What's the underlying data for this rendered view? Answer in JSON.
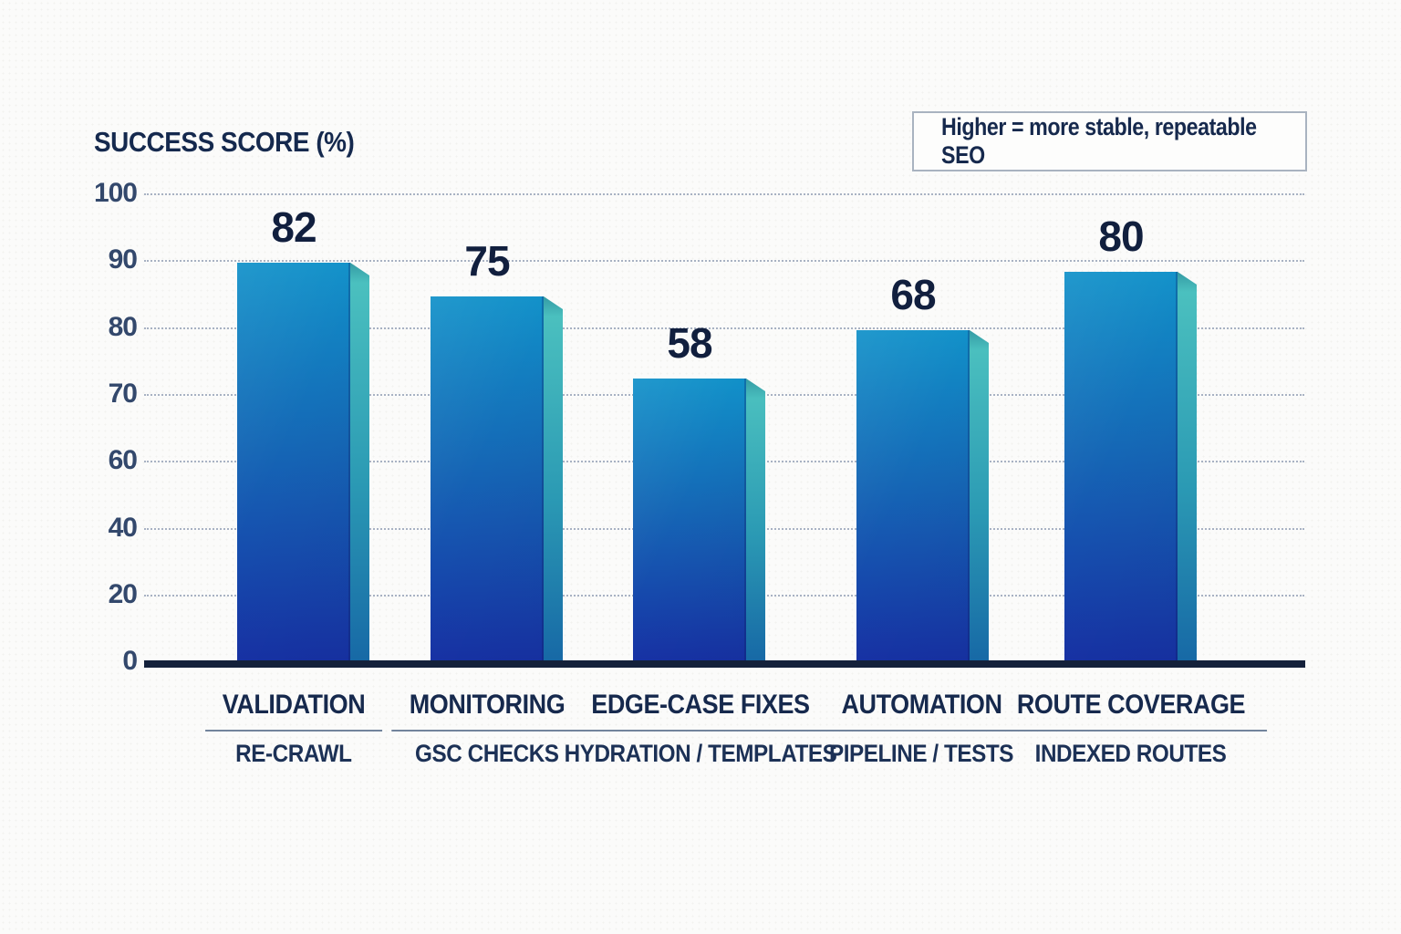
{
  "header": {
    "title_main": "SUCCESS SCORE",
    "title_unit": "(%)",
    "note": "Higher = more stable, repeatable SEO"
  },
  "chart_data": {
    "type": "bar",
    "title": "SUCCESS SCORE (%)",
    "annotation": "Higher = more stable, repeatable SEO",
    "categories": [
      "VALIDATION",
      "MONITORING",
      "EDGE-CASE FIXES",
      "AUTOMATION",
      "ROUTE COVERAGE"
    ],
    "sublabels": [
      "RE-CRAWL",
      "GSC CHECKS",
      "HYDRATION / TEMPLATES",
      "PIPELINE / TESTS",
      "INDEXED ROUTES"
    ],
    "values": [
      82,
      75,
      58,
      68,
      80
    ],
    "ylabel": "SUCCESS SCORE (%)",
    "yticks": [
      100,
      90,
      80,
      70,
      60,
      40,
      20,
      0
    ],
    "ylim": [
      0,
      100
    ],
    "grid": "horizontal-dotted",
    "legend_position": "none",
    "colors": {
      "bar_front_top": "#1191c9",
      "bar_front_bottom": "#1732a5",
      "bar_side_top": "#4ec4c0",
      "bar_side_bottom": "#1769a6",
      "value_label": "#111f3e",
      "axis": "#14213b",
      "gridline": "#9aa6ba",
      "heading_text": "#15294e"
    }
  }
}
